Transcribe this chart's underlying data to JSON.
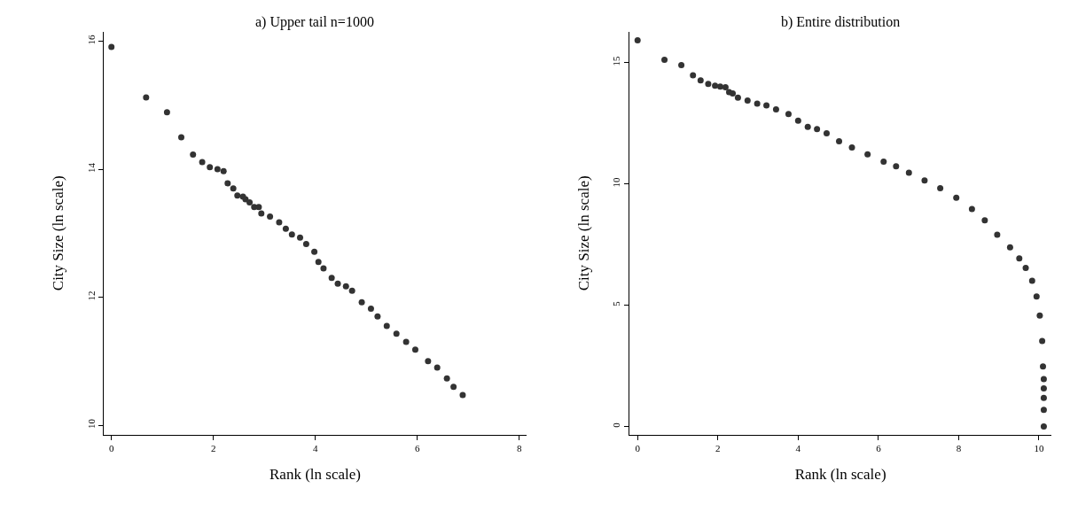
{
  "chart_data": [
    {
      "type": "scatter",
      "title": "a) Upper tail n=1000",
      "xlabel": "Rank (ln scale)",
      "ylabel": "City Size (ln scale)",
      "color": "#333333",
      "marker": "circle",
      "x": [
        0,
        0.68,
        1.09,
        1.37,
        1.6,
        1.78,
        1.93,
        2.08,
        2.2,
        2.28,
        2.39,
        2.47,
        2.58,
        2.63,
        2.71,
        2.8,
        2.89,
        2.94,
        3.11,
        3.29,
        3.42,
        3.54,
        3.7,
        3.82,
        3.98,
        4.06,
        4.16,
        4.32,
        4.44,
        4.6,
        4.72,
        4.91,
        5.09,
        5.22,
        5.4,
        5.59,
        5.78,
        5.96,
        6.21,
        6.39,
        6.58,
        6.71,
        6.89
      ],
      "values": [
        15.91,
        15.12,
        14.89,
        14.5,
        14.23,
        14.11,
        14.03,
        14.0,
        13.97,
        13.78,
        13.7,
        13.59,
        13.57,
        13.53,
        13.48,
        13.41,
        13.41,
        13.31,
        13.26,
        13.17,
        13.07,
        12.98,
        12.93,
        12.83,
        12.71,
        12.55,
        12.45,
        12.3,
        12.21,
        12.17,
        12.1,
        11.92,
        11.82,
        11.7,
        11.55,
        11.43,
        11.3,
        11.18,
        11.0,
        10.9,
        10.73,
        10.6,
        10.47
      ],
      "xlim": [
        -0.15,
        8.14
      ],
      "ylim": [
        9.85,
        16.15
      ],
      "xticks": [
        0,
        2,
        4,
        6,
        8
      ],
      "yticks": [
        10,
        12,
        14,
        16
      ],
      "grid": false
    },
    {
      "type": "scatter",
      "title": "b) Entire distribution",
      "xlabel": "Rank (ln scale)",
      "ylabel": "City Size (ln scale)",
      "color": "#333333",
      "marker": "circle",
      "x": [
        0,
        0.67,
        1.09,
        1.38,
        1.57,
        1.76,
        1.93,
        2.06,
        2.19,
        2.28,
        2.37,
        2.5,
        2.74,
        2.98,
        3.21,
        3.45,
        3.76,
        4.0,
        4.24,
        4.47,
        4.71,
        5.02,
        5.34,
        5.73,
        6.13,
        6.44,
        6.76,
        7.15,
        7.54,
        7.94,
        8.33,
        8.65,
        8.96,
        9.28,
        9.51,
        9.67,
        9.83,
        9.94,
        10.02,
        10.08,
        10.1,
        10.12,
        10.12,
        10.12,
        10.12,
        10.12
      ],
      "values": [
        15.92,
        15.12,
        14.9,
        14.48,
        14.27,
        14.12,
        14.05,
        14.01,
        13.99,
        13.79,
        13.73,
        13.56,
        13.44,
        13.31,
        13.24,
        13.07,
        12.88,
        12.61,
        12.35,
        12.26,
        12.09,
        11.76,
        11.5,
        11.22,
        10.92,
        10.73,
        10.46,
        10.14,
        9.82,
        9.43,
        8.97,
        8.5,
        7.91,
        7.39,
        6.93,
        6.54,
        6.01,
        5.36,
        4.58,
        3.53,
        2.48,
        1.96,
        1.57,
        1.18,
        0.69,
        0
      ],
      "xlim": [
        -0.21,
        10.32
      ],
      "ylim": [
        -0.34,
        16.28
      ],
      "xticks": [
        0,
        2,
        4,
        6,
        8,
        10
      ],
      "yticks": [
        0,
        5,
        10,
        15
      ],
      "grid": false
    }
  ]
}
